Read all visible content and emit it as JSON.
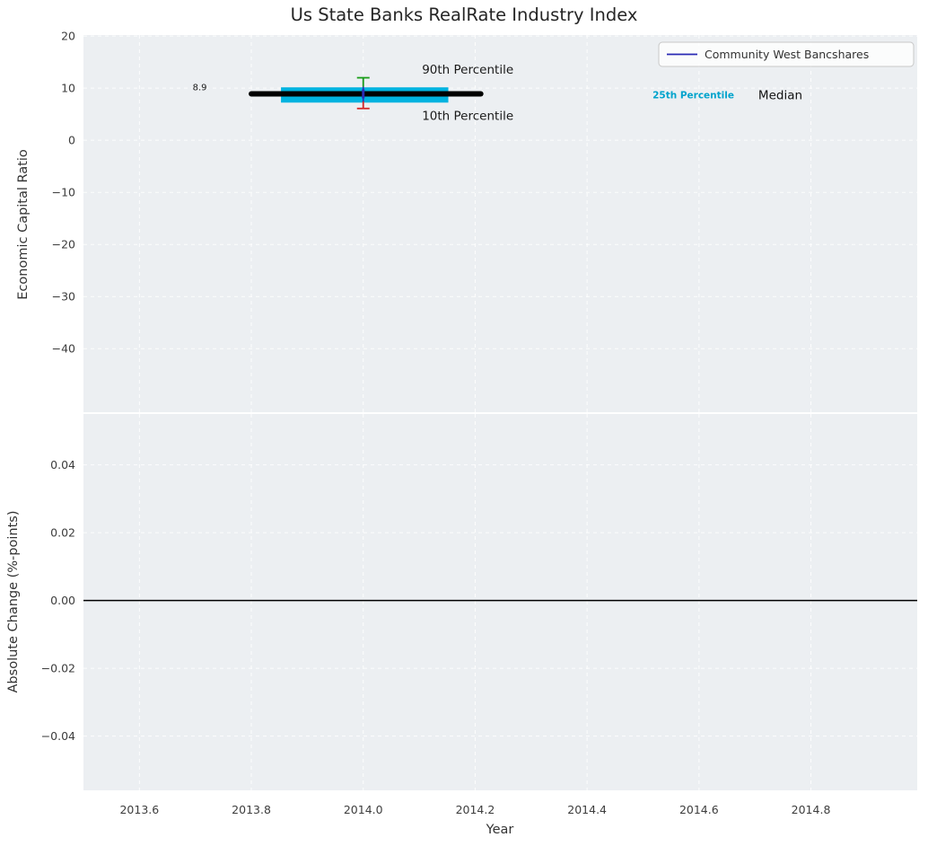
{
  "figure": {
    "title": "Us State Banks RealRate Industry Index"
  },
  "style": {
    "plot_bg": "#ECEFF2",
    "grid_color": "#ffffff",
    "legend_bg": "rgba(255,255,255,0.78)",
    "legend_border": "#c8c8c8",
    "accent_cyan": "#00b3e0",
    "company_color": "#2a2ab4"
  },
  "chart_data": [
    {
      "type": "line",
      "title": "Us State Banks RealRate Industry Index",
      "ylabel": "Economic Capital Ratio",
      "xlim": [
        2013.5,
        2014.99
      ],
      "ylim": [
        -52.2,
        20.2
      ],
      "grid": true,
      "yticks": {
        "values": [
          20,
          10,
          0,
          -10,
          -20,
          -30,
          -40
        ],
        "labels": [
          "20",
          "10",
          "0",
          "−10",
          "−20",
          "−30",
          "−40"
        ]
      },
      "xticks": {
        "values": [
          2013.6,
          2013.8,
          2014.0,
          2014.2,
          2014.4,
          2014.6,
          2014.8
        ],
        "labels": [
          "2013.6",
          "2013.8",
          "2014.0",
          "2014.2",
          "2014.4",
          "2014.6",
          "2014.8"
        ],
        "show_labels": false
      },
      "legend": {
        "position": "upper right",
        "entries": [
          {
            "label": "Community West Bancshares",
            "color": "#2a2ab4"
          }
        ]
      },
      "series": [
        {
          "name": "Community West Bancshares",
          "color": "#2a2ab4",
          "x": [
            2014.0
          ],
          "y": [
            8.9
          ]
        }
      ],
      "industry_percentiles": {
        "x_center": 2014.0,
        "band_x": [
          2013.853,
          2014.152
        ],
        "median_x": [
          2013.8,
          2014.21
        ],
        "p10": 6.1,
        "p25": 8.7,
        "median": 8.9,
        "p90": 12.0,
        "colors": {
          "p25_band": "#00b3e0",
          "median": "#000000",
          "p90_cap": "#1a9e1a",
          "p10_cap": "#d42a2a",
          "whisker": "#2a2ab4"
        }
      },
      "annotations": [
        {
          "text": "90th Percentile",
          "x": 2014.105,
          "y": 13.5,
          "size": 13.5,
          "color": "#1a1a1a",
          "weight": "normal",
          "anchor": "start"
        },
        {
          "text": "10th Percentile",
          "x": 2014.105,
          "y": 4.6,
          "size": 13.5,
          "color": "#1a1a1a",
          "weight": "normal",
          "anchor": "start"
        },
        {
          "text": "8.9",
          "x": 2013.695,
          "y": 10.0,
          "size": 10,
          "color": "#1a1a1a",
          "weight": "normal",
          "anchor": "start"
        },
        {
          "text": "25th Percentile",
          "x": 2014.517,
          "y": 8.6,
          "size": 10.5,
          "color": "#00a3cc",
          "weight": "bold",
          "anchor": "start"
        },
        {
          "text": "Median",
          "x": 2014.706,
          "y": 8.6,
          "size": 13.5,
          "color": "#111111",
          "weight": "normal",
          "anchor": "start"
        }
      ]
    },
    {
      "type": "line",
      "ylabel": "Absolute Change (%-points)",
      "xlabel": "Year",
      "xlim": [
        2013.5,
        2014.99
      ],
      "ylim": [
        -0.056,
        0.055
      ],
      "grid": true,
      "yticks": {
        "values": [
          0.04,
          0.02,
          0,
          -0.02,
          -0.04
        ],
        "labels": [
          "0.04",
          "0.02",
          "0.00",
          "−0.02",
          "−0.04"
        ]
      },
      "xticks": {
        "values": [
          2013.6,
          2013.8,
          2014.0,
          2014.2,
          2014.4,
          2014.6,
          2014.8
        ],
        "labels": [
          "2013.6",
          "2013.8",
          "2014.0",
          "2014.2",
          "2014.4",
          "2014.6",
          "2014.8"
        ],
        "show_labels": true
      },
      "zero_line": {
        "y": 0.0,
        "color": "#000000"
      },
      "series": []
    }
  ]
}
